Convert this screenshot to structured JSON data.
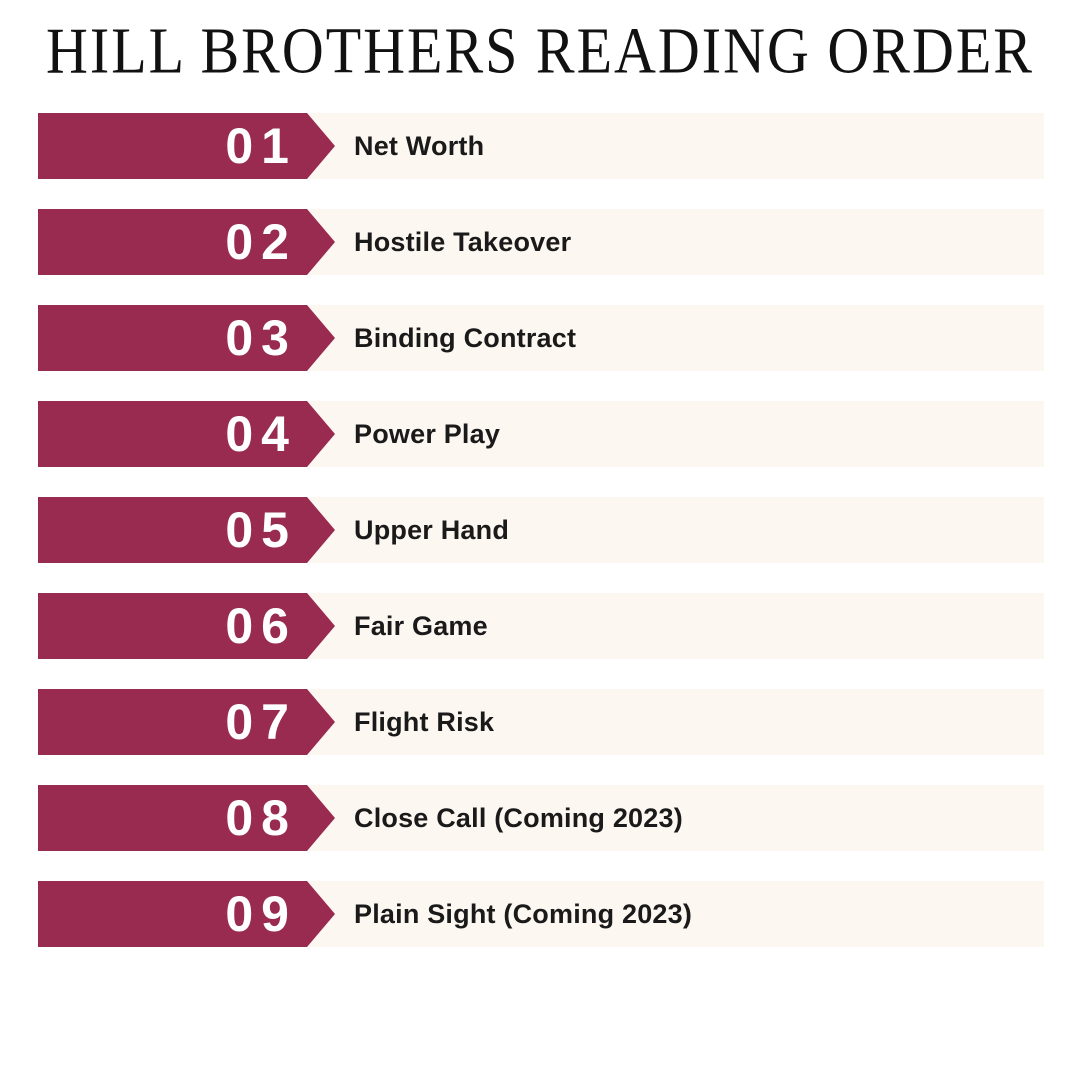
{
  "title": "HILL BROTHERS READING ORDER",
  "colors": {
    "page_bg": "#FFFFFF",
    "banner_bg": "#992B50",
    "row_bg": "#FDF7F1",
    "title_color": "#111111",
    "text_color": "#1A1A1A",
    "number_color": "#FFFFFF"
  },
  "items": [
    {
      "number": "01",
      "label": "Net Worth"
    },
    {
      "number": "02",
      "label": "Hostile Takeover"
    },
    {
      "number": "03",
      "label": "Binding Contract"
    },
    {
      "number": "04",
      "label": "Power Play"
    },
    {
      "number": "05",
      "label": "Upper Hand"
    },
    {
      "number": "06",
      "label": "Fair Game"
    },
    {
      "number": "07",
      "label": "Flight Risk"
    },
    {
      "number": "08",
      "label": "Close Call (Coming 2023)"
    },
    {
      "number": "09",
      "label": "Plain Sight (Coming 2023)"
    }
  ]
}
